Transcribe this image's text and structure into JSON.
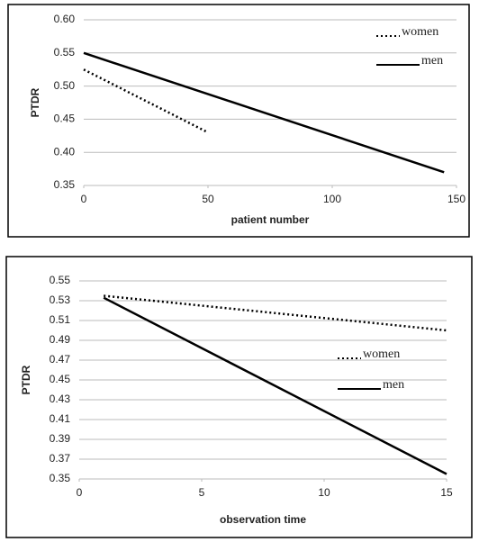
{
  "chart_data": [
    {
      "type": "line",
      "x_label": "patient number",
      "y_label": "PTDR",
      "xlim": [
        0,
        150
      ],
      "xticks": [
        0,
        50,
        100,
        150
      ],
      "ylim": [
        0.35,
        0.6
      ],
      "yticks": [
        {
          "value": 0.6,
          "label": "0.60"
        },
        0.55,
        {
          "value": 0.5,
          "label": "0.50"
        },
        0.45,
        {
          "value": 0.4,
          "label": "0.40"
        },
        0.35
      ],
      "grid": true,
      "legend": "top-right",
      "series": [
        {
          "name": "women",
          "color": "#000000",
          "style": "dotted",
          "x": [
            0,
            50
          ],
          "values": [
            0.525,
            0.43
          ]
        },
        {
          "name": "men",
          "color": "#000000",
          "style": "solid",
          "x": [
            0,
            145
          ],
          "values": [
            0.55,
            0.37
          ]
        }
      ]
    },
    {
      "type": "line",
      "x_label": "observation time",
      "y_label": "PTDR",
      "xlim": [
        0,
        15
      ],
      "xticks": [
        0,
        5,
        10,
        15
      ],
      "ylim": [
        0.35,
        0.55
      ],
      "yticks": [
        0.55,
        0.53,
        0.51,
        0.49,
        0.47,
        0.45,
        0.43,
        0.41,
        0.39,
        0.37,
        0.35
      ],
      "grid": true,
      "legend": "right",
      "series": [
        {
          "name": "women",
          "color": "#000000",
          "style": "dotted",
          "x": [
            1,
            15
          ],
          "values": [
            0.535,
            0.5
          ]
        },
        {
          "name": "men",
          "color": "#000000",
          "style": "solid",
          "x": [
            1,
            15
          ],
          "values": [
            0.533,
            0.355
          ]
        }
      ]
    }
  ]
}
